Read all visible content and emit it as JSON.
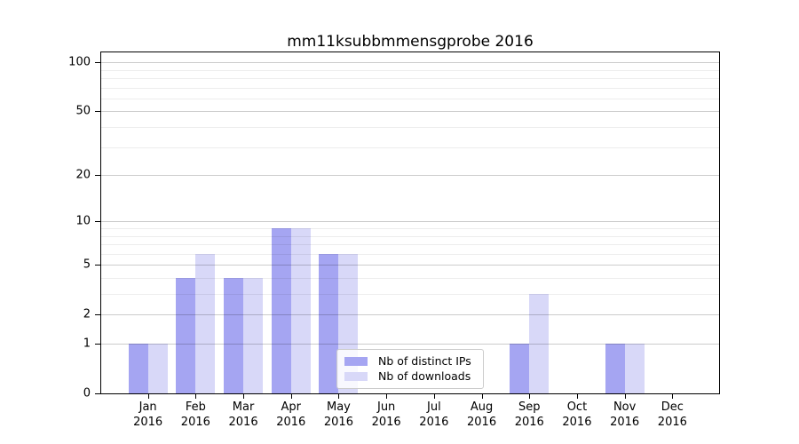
{
  "chart_data": {
    "type": "bar",
    "title": "mm11ksubbmmensgprobe 2016",
    "categories": [
      "Jan 2016",
      "Feb 2016",
      "Mar 2016",
      "Apr 2016",
      "May 2016",
      "Jun 2016",
      "Jul 2016",
      "Aug 2016",
      "Sep 2016",
      "Oct 2016",
      "Nov 2016",
      "Dec 2016"
    ],
    "series": [
      {
        "name": "Nb of distinct IPs",
        "color": "#a5a5f2",
        "values": [
          1,
          4,
          4,
          9,
          6,
          0,
          0,
          0,
          1,
          0,
          1,
          0
        ]
      },
      {
        "name": "Nb of downloads",
        "color": "#d8d8f8",
        "values": [
          1,
          6,
          4,
          9,
          6,
          0,
          0,
          0,
          3,
          0,
          1,
          0
        ]
      }
    ],
    "xlabel": "",
    "ylabel": "",
    "y_scale": "log1p",
    "ylim": [
      0,
      115
    ],
    "y_ticks": [
      0,
      1,
      2,
      5,
      10,
      20,
      50,
      100
    ],
    "y_minor_gridlines": [
      3,
      4,
      6,
      7,
      8,
      9,
      30,
      40,
      60,
      70,
      80,
      90
    ],
    "grid": true,
    "legend_position": "lower center"
  },
  "colors": {
    "axis": "#000000",
    "grid_major": "#cccccc",
    "grid_minor": "#ececec",
    "legend_border": "#cccccc",
    "background": "#ffffff"
  }
}
